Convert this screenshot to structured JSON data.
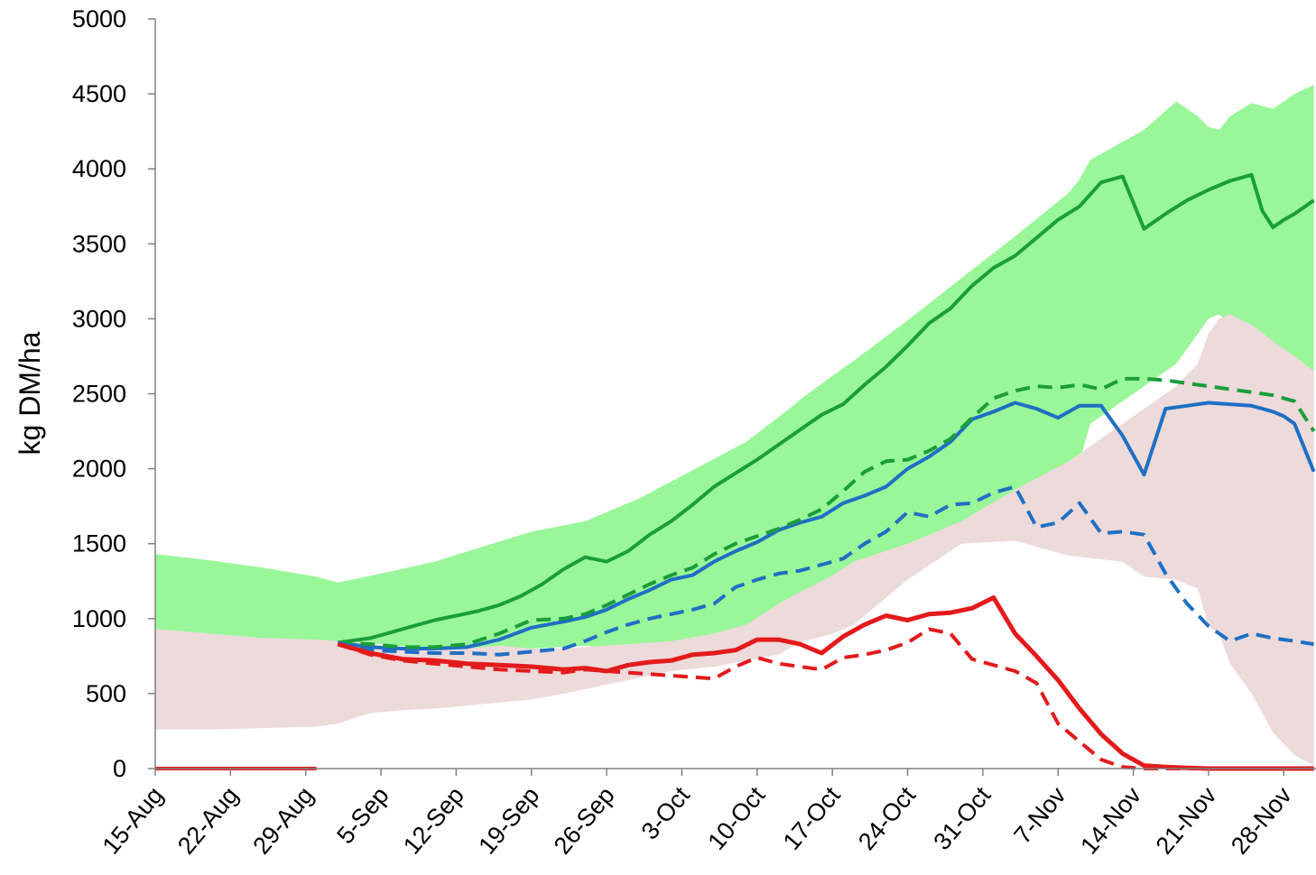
{
  "chart_data": {
    "type": "area",
    "title": "",
    "xlabel": "",
    "ylabel": "kg DM/ha",
    "ylim": [
      0,
      5000
    ],
    "yticks": [
      0,
      500,
      1000,
      1500,
      2000,
      2500,
      3000,
      3500,
      4000,
      4500,
      5000
    ],
    "xlim": [
      "15-Aug",
      "2-Dec"
    ],
    "xtick_labels": [
      "15-Aug",
      "22-Aug",
      "29-Aug",
      "5-Sep",
      "12-Sep",
      "19-Sep",
      "26-Sep",
      "3-Oct",
      "10-Oct",
      "17-Oct",
      "24-Oct",
      "31-Oct",
      "7-Nov",
      "14-Nov",
      "21-Nov",
      "28-Nov"
    ],
    "grid": false,
    "legend": "none",
    "x_axis_note": "x values are day offsets from 15-Aug",
    "bands": [
      {
        "color": "#99f799",
        "x": [
          0,
          5,
          10,
          15,
          17,
          21,
          26,
          30,
          35,
          40,
          42,
          45,
          50,
          55,
          59,
          60,
          63,
          65,
          70,
          75,
          80,
          85,
          86,
          87,
          89,
          92,
          95,
          97,
          98,
          99,
          100,
          102,
          104,
          106,
          107.8
        ],
        "upper": [
          1430,
          1390,
          1340,
          1280,
          1240,
          1300,
          1380,
          1470,
          1580,
          1650,
          1710,
          1800,
          1990,
          2180,
          2400,
          2460,
          2620,
          2720,
          2990,
          3270,
          3550,
          3840,
          3930,
          4060,
          4140,
          4260,
          4450,
          4350,
          4280,
          4260,
          4350,
          4440,
          4400,
          4500,
          4560
        ],
        "lower": [
          930,
          900,
          870,
          860,
          850,
          830,
          800,
          790,
          800,
          820,
          800,
          800,
          820,
          850,
          900,
          960,
          1180,
          1250,
          1380,
          1500,
          1650,
          1860,
          2050,
          2300,
          2400,
          2550,
          2700,
          2900,
          3000,
          3030,
          2960,
          2850,
          2750,
          2650,
          2500
        ]
      },
      {
        "color": "#eddada",
        "x": [
          0,
          5,
          10,
          15,
          17,
          20,
          23,
          26,
          29,
          32,
          35,
          38,
          42,
          48,
          52,
          55,
          58,
          60,
          62,
          63,
          65,
          70,
          75,
          80,
          85,
          90,
          92,
          95,
          97,
          98,
          99,
          100,
          102,
          104,
          106,
          107.8
        ],
        "upper": [
          930,
          900,
          870,
          860,
          850,
          830,
          800,
          790,
          800,
          820,
          800,
          800,
          820,
          850,
          900,
          960,
          1100,
          1180,
          1250,
          1290,
          1380,
          1500,
          1650,
          1860,
          2050,
          2300,
          2400,
          2550,
          2700,
          2900,
          3000,
          3030,
          2960,
          2850,
          2750,
          2650
        ],
        "lower": [
          260,
          260,
          270,
          280,
          300,
          370,
          390,
          400,
          420,
          440,
          460,
          500,
          560,
          650,
          680,
          720,
          760,
          840,
          880,
          900,
          960,
          1260,
          1500,
          1520,
          1420,
          1380,
          1280,
          1260,
          1200,
          950,
          900,
          700,
          500,
          240,
          90,
          20
        ]
      }
    ],
    "series": [
      {
        "color": "#1a9e3a",
        "style": "solid",
        "x": [
          17,
          20,
          22,
          24,
          26,
          28,
          30,
          32,
          34,
          36,
          38,
          40,
          42,
          44,
          46,
          48,
          50,
          52,
          54,
          56,
          58,
          60,
          62,
          64,
          66,
          68,
          70,
          72,
          74,
          76,
          78,
          80,
          82,
          84,
          86,
          88,
          90,
          92,
          94,
          96,
          98,
          100,
          102,
          103,
          104,
          105,
          106,
          107.8
        ],
        "y": [
          840,
          870,
          910,
          950,
          990,
          1020,
          1050,
          1090,
          1150,
          1230,
          1330,
          1410,
          1380,
          1450,
          1560,
          1650,
          1760,
          1880,
          1970,
          2060,
          2160,
          2260,
          2360,
          2430,
          2560,
          2680,
          2820,
          2970,
          3070,
          3220,
          3340,
          3420,
          3540,
          3660,
          3750,
          3910,
          3950,
          3600,
          3700,
          3790,
          3860,
          3920,
          3960,
          3720,
          3610,
          3660,
          3700,
          3790
        ]
      },
      {
        "color": "#1f6fc4",
        "style": "solid",
        "x": [
          17,
          20,
          23,
          26,
          29,
          32,
          35,
          38,
          40,
          42,
          44,
          46,
          48,
          50,
          52,
          54,
          56,
          58,
          60,
          62,
          64,
          66,
          68,
          70,
          72,
          74,
          76,
          78,
          80,
          82,
          84,
          86,
          88,
          90,
          92,
          94,
          96,
          98,
          100,
          102,
          103,
          104,
          105,
          106,
          107.8
        ],
        "y": [
          840,
          810,
          800,
          800,
          810,
          860,
          940,
          980,
          1010,
          1060,
          1130,
          1190,
          1260,
          1290,
          1380,
          1450,
          1510,
          1590,
          1640,
          1680,
          1770,
          1820,
          1880,
          2000,
          2080,
          2180,
          2330,
          2380,
          2440,
          2400,
          2340,
          2420,
          2420,
          2220,
          1960,
          2400,
          2420,
          2440,
          2430,
          2420,
          2400,
          2380,
          2350,
          2300,
          1980
        ]
      },
      {
        "color": "#1a9e3a",
        "style": "dashed",
        "x": [
          17,
          20,
          23,
          26,
          29,
          32,
          35,
          38,
          40,
          42,
          44,
          46,
          48,
          50,
          52,
          54,
          56,
          58,
          60,
          62,
          64,
          66,
          68,
          70,
          72,
          74,
          76,
          78,
          80,
          82,
          84,
          86,
          88,
          90,
          92,
          94,
          96,
          98,
          100,
          102,
          104,
          106,
          107.8
        ],
        "y": [
          840,
          830,
          810,
          810,
          830,
          900,
          990,
          1000,
          1030,
          1090,
          1160,
          1230,
          1290,
          1340,
          1430,
          1500,
          1550,
          1600,
          1660,
          1730,
          1850,
          1980,
          2050,
          2060,
          2120,
          2200,
          2340,
          2470,
          2520,
          2550,
          2540,
          2560,
          2530,
          2600,
          2600,
          2590,
          2570,
          2550,
          2530,
          2510,
          2490,
          2450,
          2250
        ]
      },
      {
        "color": "#1f6fc4",
        "style": "dashed",
        "x": [
          17,
          20,
          23,
          26,
          29,
          32,
          35,
          38,
          40,
          42,
          44,
          46,
          48,
          50,
          52,
          54,
          56,
          58,
          60,
          62,
          64,
          66,
          68,
          70,
          72,
          74,
          76,
          78,
          80,
          82,
          84,
          86,
          88,
          90,
          92,
          94,
          96,
          98,
          100,
          102,
          104,
          106,
          107.8
        ],
        "y": [
          840,
          790,
          780,
          770,
          770,
          760,
          780,
          800,
          850,
          910,
          960,
          1000,
          1030,
          1060,
          1100,
          1210,
          1260,
          1300,
          1320,
          1360,
          1400,
          1500,
          1580,
          1710,
          1680,
          1760,
          1770,
          1840,
          1880,
          1610,
          1640,
          1770,
          1570,
          1580,
          1560,
          1300,
          1100,
          950,
          850,
          900,
          870,
          850,
          830
        ]
      },
      {
        "color": "#e31a1c",
        "style": "solid",
        "width": 5,
        "x": [
          17,
          20,
          23,
          26,
          29,
          32,
          35,
          38,
          40,
          42,
          44,
          46,
          48,
          50,
          52,
          54,
          56,
          58,
          60,
          62,
          64,
          66,
          68,
          70,
          72,
          74,
          76,
          78,
          80,
          82,
          84,
          86,
          88,
          90,
          92,
          94,
          96,
          98,
          100,
          102,
          104,
          106,
          107.8
        ],
        "y": [
          830,
          770,
          730,
          720,
          700,
          690,
          680,
          660,
          670,
          650,
          690,
          710,
          720,
          760,
          770,
          790,
          860,
          860,
          830,
          770,
          880,
          960,
          1020,
          990,
          1030,
          1040,
          1070,
          1140,
          900,
          750,
          590,
          400,
          230,
          100,
          20,
          10,
          5,
          0,
          0,
          0,
          0,
          0,
          0
        ]
      },
      {
        "color": "#e31a1c",
        "style": "dashed",
        "x": [
          17,
          20,
          23,
          26,
          29,
          32,
          35,
          38,
          40,
          42,
          44,
          46,
          48,
          50,
          52,
          54,
          56,
          58,
          60,
          62,
          64,
          66,
          68,
          70,
          72,
          74,
          76,
          78,
          80,
          82,
          84,
          86,
          88,
          90,
          92,
          94,
          96,
          98,
          100,
          102,
          104,
          106,
          107.8
        ],
        "y": [
          830,
          760,
          720,
          700,
          680,
          660,
          650,
          640,
          660,
          650,
          640,
          630,
          620,
          610,
          600,
          680,
          740,
          700,
          680,
          660,
          740,
          760,
          790,
          840,
          930,
          900,
          730,
          690,
          650,
          570,
          300,
          180,
          60,
          10,
          0,
          0,
          0,
          0,
          0,
          0,
          0,
          0,
          0
        ]
      },
      {
        "color": "#e31a1c",
        "style": "solid",
        "width": 4,
        "x": [
          0,
          5,
          10,
          15
        ],
        "y": [
          0,
          0,
          0,
          0
        ]
      }
    ]
  }
}
